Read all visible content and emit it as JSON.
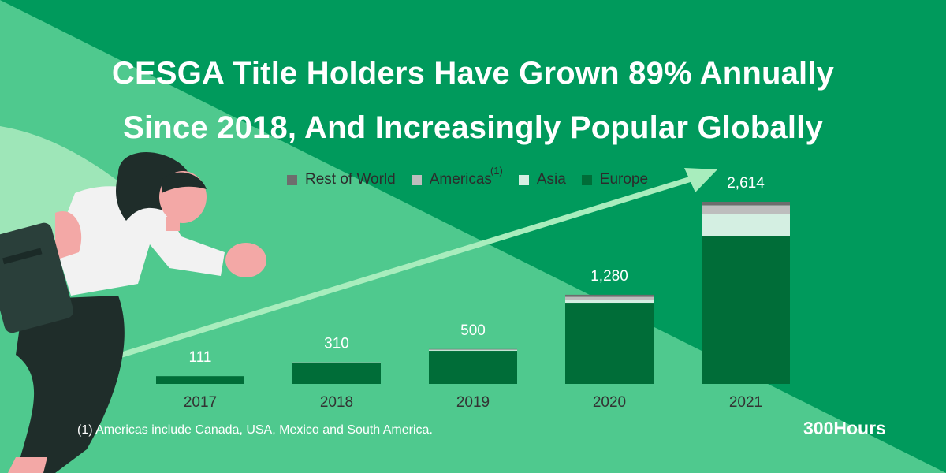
{
  "title_line1": "CESGA Title Holders Have Grown 89% Annually",
  "title_line2": "Since 2018, And Increasingly Popular Globally",
  "legend": [
    {
      "label": "Rest of World",
      "color": "#6d6d6d"
    },
    {
      "label": "Americas",
      "sup": "(1)",
      "color": "#bdbdbd"
    },
    {
      "label": "Asia",
      "color": "#d4efe2"
    },
    {
      "label": "Europe",
      "color": "#006d38"
    }
  ],
  "footnote": "(1) Americas include Canada, USA, Mexico and South America.",
  "brand": "300Hours",
  "chart_data": {
    "type": "bar",
    "stacked": true,
    "categories": [
      "2017",
      "2018",
      "2019",
      "2020",
      "2021"
    ],
    "totals": [
      111,
      310,
      500,
      1280,
      2614
    ],
    "total_labels": [
      "111",
      "310",
      "500",
      "1,280",
      "2,614"
    ],
    "series": [
      {
        "name": "Europe",
        "color": "#006d38",
        "values": [
          111,
          300,
          475,
          1165,
          2120
        ]
      },
      {
        "name": "Asia",
        "color": "#d4efe2",
        "values": [
          0,
          5,
          10,
          40,
          320
        ]
      },
      {
        "name": "Americas",
        "color": "#bdbdbd",
        "values": [
          0,
          4,
          10,
          45,
          124
        ]
      },
      {
        "name": "Rest of World",
        "color": "#6d6d6d",
        "values": [
          0,
          1,
          5,
          30,
          50
        ]
      }
    ],
    "ylim": [
      0,
      2614
    ]
  }
}
